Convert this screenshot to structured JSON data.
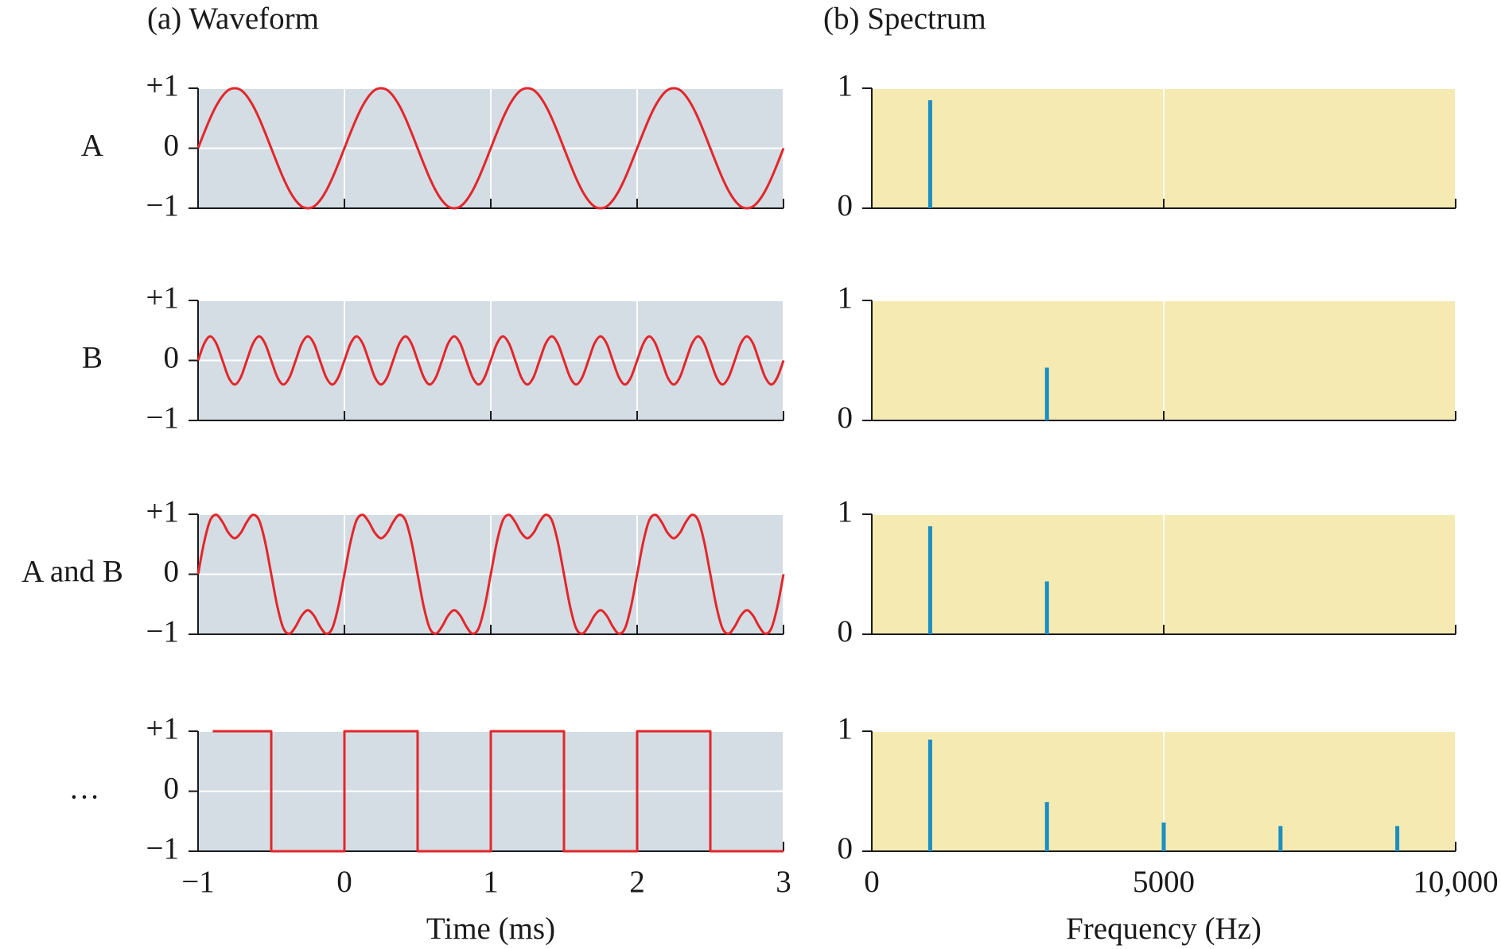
{
  "chart_data": [
    {
      "type": "line",
      "title": "(a) Waveform",
      "row_label": "A",
      "curve": "smooth",
      "background": "#d3dde3",
      "grid": true,
      "xtick_labels": false,
      "xlim": [
        -1,
        3
      ],
      "xticks": [
        -1,
        0,
        1,
        2,
        3
      ],
      "ylim": [
        -1,
        1
      ],
      "yticks": [
        {
          "value": -1,
          "label": "−1"
        },
        0,
        {
          "value": 1,
          "label": "+1"
        }
      ],
      "x": [
        -1,
        -0.958,
        -0.917,
        -0.875,
        -0.833,
        -0.792,
        -0.75,
        -0.708,
        -0.667,
        -0.625,
        -0.583,
        -0.542,
        -0.5,
        -0.458,
        -0.417,
        -0.375,
        -0.333,
        -0.292,
        -0.25,
        -0.208,
        -0.167,
        -0.125,
        -0.083,
        -0.042,
        0,
        0.042,
        0.083,
        0.125,
        0.167,
        0.208,
        0.25,
        0.292,
        0.333,
        0.375,
        0.417,
        0.458,
        0.5,
        0.542,
        0.583,
        0.625,
        0.667,
        0.708,
        0.75,
        0.792,
        0.833,
        0.875,
        0.917,
        0.958,
        1,
        1.042,
        1.083,
        1.125,
        1.167,
        1.208,
        1.25,
        1.292,
        1.333,
        1.375,
        1.417,
        1.458,
        1.5,
        1.542,
        1.583,
        1.625,
        1.667,
        1.708,
        1.75,
        1.792,
        1.833,
        1.875,
        1.917,
        1.958,
        2,
        2.042,
        2.083,
        2.125,
        2.167,
        2.208,
        2.25,
        2.292,
        2.333,
        2.375,
        2.417,
        2.458,
        2.5,
        2.542,
        2.583,
        2.625,
        2.667,
        2.708,
        2.75,
        2.792,
        2.833,
        2.875,
        2.917,
        2.958,
        3
      ],
      "series": [
        {
          "color": "#e3262b",
          "values": [
            0,
            0.26,
            0.5,
            0.71,
            0.87,
            0.97,
            1,
            0.97,
            0.87,
            0.71,
            0.5,
            0.26,
            0,
            -0.26,
            -0.5,
            -0.71,
            -0.87,
            -0.97,
            -1,
            -0.97,
            -0.87,
            -0.71,
            -0.5,
            -0.26,
            0,
            0.26,
            0.5,
            0.71,
            0.87,
            0.97,
            1,
            0.97,
            0.87,
            0.71,
            0.5,
            0.26,
            0,
            -0.26,
            -0.5,
            -0.71,
            -0.87,
            -0.97,
            -1,
            -0.97,
            -0.87,
            -0.71,
            -0.5,
            -0.26,
            0,
            0.26,
            0.5,
            0.71,
            0.87,
            0.97,
            1,
            0.97,
            0.87,
            0.71,
            0.5,
            0.26,
            0,
            -0.26,
            -0.5,
            -0.71,
            -0.87,
            -0.97,
            -1,
            -0.97,
            -0.87,
            -0.71,
            -0.5,
            -0.26,
            0,
            0.26,
            0.5,
            0.71,
            0.87,
            0.97,
            1,
            0.97,
            0.87,
            0.71,
            0.5,
            0.26,
            0,
            -0.26,
            -0.5,
            -0.71,
            -0.87,
            -0.97,
            -1,
            -0.97,
            -0.87,
            -0.71,
            -0.5,
            -0.26,
            0
          ]
        }
      ]
    },
    {
      "type": "line",
      "row_label": "B",
      "curve": "smooth",
      "background": "#d3dde3",
      "grid": true,
      "xtick_labels": false,
      "xlim": [
        -1,
        3
      ],
      "xticks": [
        -1,
        0,
        1,
        2,
        3
      ],
      "ylim": [
        -1,
        1
      ],
      "yticks": [
        {
          "value": -1,
          "label": "−1"
        },
        0,
        {
          "value": 1,
          "label": "+1"
        }
      ],
      "x": [
        -1,
        -0.958,
        -0.917,
        -0.875,
        -0.833,
        -0.792,
        -0.75,
        -0.708,
        -0.667,
        -0.625,
        -0.583,
        -0.542,
        -0.5,
        -0.458,
        -0.417,
        -0.375,
        -0.333,
        -0.292,
        -0.25,
        -0.208,
        -0.167,
        -0.125,
        -0.083,
        -0.042,
        0,
        0.042,
        0.083,
        0.125,
        0.167,
        0.208,
        0.25,
        0.292,
        0.333,
        0.375,
        0.417,
        0.458,
        0.5,
        0.542,
        0.583,
        0.625,
        0.667,
        0.708,
        0.75,
        0.792,
        0.833,
        0.875,
        0.917,
        0.958,
        1,
        1.042,
        1.083,
        1.125,
        1.167,
        1.208,
        1.25,
        1.292,
        1.333,
        1.375,
        1.417,
        1.458,
        1.5,
        1.542,
        1.583,
        1.625,
        1.667,
        1.708,
        1.75,
        1.792,
        1.833,
        1.875,
        1.917,
        1.958,
        2,
        2.042,
        2.083,
        2.125,
        2.167,
        2.208,
        2.25,
        2.292,
        2.333,
        2.375,
        2.417,
        2.458,
        2.5,
        2.542,
        2.583,
        2.625,
        2.667,
        2.708,
        2.75,
        2.792,
        2.833,
        2.875,
        2.917,
        2.958,
        3
      ],
      "series": [
        {
          "color": "#e3262b",
          "values": [
            0,
            0.28,
            0.4,
            0.28,
            0,
            -0.28,
            -0.4,
            -0.28,
            0,
            0.28,
            0.4,
            0.28,
            0,
            -0.28,
            -0.4,
            -0.28,
            0,
            0.28,
            0.4,
            0.28,
            0,
            -0.28,
            -0.4,
            -0.28,
            0,
            0.28,
            0.4,
            0.28,
            0,
            -0.28,
            -0.4,
            -0.28,
            0,
            0.28,
            0.4,
            0.28,
            0,
            -0.28,
            -0.4,
            -0.28,
            0,
            0.28,
            0.4,
            0.28,
            0,
            -0.28,
            -0.4,
            -0.28,
            0,
            0.28,
            0.4,
            0.28,
            0,
            -0.28,
            -0.4,
            -0.28,
            0,
            0.28,
            0.4,
            0.28,
            0,
            -0.28,
            -0.4,
            -0.28,
            0,
            0.28,
            0.4,
            0.28,
            0,
            -0.28,
            -0.4,
            -0.28,
            0,
            0.28,
            0.4,
            0.28,
            0,
            -0.28,
            -0.4,
            -0.28,
            0,
            0.28,
            0.4,
            0.28,
            0,
            -0.28,
            -0.4,
            -0.28,
            0,
            0.28,
            0.4,
            0.28,
            0,
            -0.28,
            -0.4,
            -0.28,
            0
          ]
        }
      ]
    },
    {
      "type": "line",
      "row_label": "A and B",
      "curve": "smooth",
      "background": "#d3dde3",
      "grid": true,
      "xtick_labels": false,
      "xlim": [
        -1,
        3
      ],
      "xticks": [
        -1,
        0,
        1,
        2,
        3
      ],
      "ylim": [
        -1,
        1
      ],
      "yticks": [
        {
          "value": -1,
          "label": "−1"
        },
        0,
        {
          "value": 1,
          "label": "+1"
        }
      ],
      "x": [
        -1,
        -0.958,
        -0.917,
        -0.875,
        -0.833,
        -0.792,
        -0.75,
        -0.708,
        -0.667,
        -0.625,
        -0.583,
        -0.542,
        -0.5,
        -0.458,
        -0.417,
        -0.375,
        -0.333,
        -0.292,
        -0.25,
        -0.208,
        -0.167,
        -0.125,
        -0.083,
        -0.042,
        0,
        0.042,
        0.083,
        0.125,
        0.167,
        0.208,
        0.25,
        0.292,
        0.333,
        0.375,
        0.417,
        0.458,
        0.5,
        0.542,
        0.583,
        0.625,
        0.667,
        0.708,
        0.75,
        0.792,
        0.833,
        0.875,
        0.917,
        0.958,
        1,
        1.042,
        1.083,
        1.125,
        1.167,
        1.208,
        1.25,
        1.292,
        1.333,
        1.375,
        1.417,
        1.458,
        1.5,
        1.542,
        1.583,
        1.625,
        1.667,
        1.708,
        1.75,
        1.792,
        1.833,
        1.875,
        1.917,
        1.958,
        2,
        2.042,
        2.083,
        2.125,
        2.167,
        2.208,
        2.25,
        2.292,
        2.333,
        2.375,
        2.417,
        2.458,
        2.5,
        2.542,
        2.583,
        2.625,
        2.667,
        2.708,
        2.75,
        2.792,
        2.833,
        2.875,
        2.917,
        2.958,
        3
      ],
      "series": [
        {
          "color": "#e3262b",
          "values": [
            0,
            0.54,
            0.9,
            0.99,
            0.87,
            0.69,
            0.6,
            0.69,
            0.87,
            0.99,
            0.9,
            0.54,
            0,
            -0.54,
            -0.9,
            -0.99,
            -0.87,
            -0.69,
            -0.6,
            -0.69,
            -0.87,
            -0.99,
            -0.9,
            -0.54,
            0,
            0.54,
            0.9,
            0.99,
            0.87,
            0.69,
            0.6,
            0.69,
            0.87,
            0.99,
            0.9,
            0.54,
            0,
            -0.54,
            -0.9,
            -0.99,
            -0.87,
            -0.69,
            -0.6,
            -0.69,
            -0.87,
            -0.99,
            -0.9,
            -0.54,
            0,
            0.54,
            0.9,
            0.99,
            0.87,
            0.69,
            0.6,
            0.69,
            0.87,
            0.99,
            0.9,
            0.54,
            0,
            -0.54,
            -0.9,
            -0.99,
            -0.87,
            -0.69,
            -0.6,
            -0.69,
            -0.87,
            -0.99,
            -0.9,
            -0.54,
            0,
            0.54,
            0.9,
            0.99,
            0.87,
            0.69,
            0.6,
            0.69,
            0.87,
            0.99,
            0.9,
            0.54,
            0,
            -0.54,
            -0.9,
            -0.99,
            -0.87,
            -0.69,
            -0.6,
            -0.69,
            -0.87,
            -0.99,
            -0.9,
            -0.54,
            0
          ]
        }
      ]
    },
    {
      "type": "line",
      "row_label": "…",
      "curve": "linear",
      "background": "#d3dde3",
      "grid": true,
      "xtick_labels": true,
      "xlabel": "Time (ms)",
      "xlim": [
        -1,
        3
      ],
      "xticks": [
        {
          "value": -1,
          "label": "−1"
        },
        0,
        1,
        2,
        3
      ],
      "ylim": [
        -1,
        1
      ],
      "yticks": [
        {
          "value": -1,
          "label": "−1"
        },
        0,
        {
          "value": 1,
          "label": "+1"
        }
      ],
      "x": [
        -0.9,
        -0.5,
        -0.5,
        0,
        0,
        0.5,
        0.5,
        1,
        1,
        1.5,
        1.5,
        2,
        2,
        2.5,
        2.5,
        3
      ],
      "series": [
        {
          "color": "#e3262b",
          "values": [
            1,
            1,
            -1,
            -1,
            1,
            1,
            -1,
            -1,
            1,
            1,
            -1,
            -1,
            1,
            1,
            -1,
            -1
          ]
        }
      ]
    },
    {
      "type": "stem",
      "title": "(b) Spectrum",
      "background": "#f4eab2",
      "grid": true,
      "xtick_labels": false,
      "xlim": [
        0,
        10000
      ],
      "xticks": [
        0,
        5000,
        10000
      ],
      "ylim": [
        0,
        1
      ],
      "yticks": [
        0,
        1
      ],
      "x": [
        1000
      ],
      "series": [
        {
          "color": "#1b8ec4",
          "values": [
            0.9
          ]
        }
      ]
    },
    {
      "type": "stem",
      "background": "#f4eab2",
      "grid": true,
      "xtick_labels": false,
      "xlim": [
        0,
        10000
      ],
      "xticks": [
        0,
        5000,
        10000
      ],
      "ylim": [
        0,
        1
      ],
      "yticks": [
        0,
        1
      ],
      "x": [
        3000
      ],
      "series": [
        {
          "color": "#1b8ec4",
          "values": [
            0.44
          ]
        }
      ]
    },
    {
      "type": "stem",
      "background": "#f4eab2",
      "grid": true,
      "xtick_labels": false,
      "xlim": [
        0,
        10000
      ],
      "xticks": [
        0,
        5000,
        10000
      ],
      "ylim": [
        0,
        1
      ],
      "yticks": [
        0,
        1
      ],
      "x": [
        1000,
        3000
      ],
      "series": [
        {
          "color": "#1b8ec4",
          "values": [
            0.9,
            0.44
          ]
        }
      ]
    },
    {
      "type": "stem",
      "background": "#f4eab2",
      "grid": true,
      "xtick_labels": true,
      "xlabel": "Frequency (Hz)",
      "xlim": [
        0,
        10000
      ],
      "xticks": [
        0,
        5000,
        {
          "value": 10000,
          "label": "10,000"
        }
      ],
      "ylim": [
        0,
        1
      ],
      "yticks": [
        0,
        1
      ],
      "x": [
        1000,
        3000,
        5000,
        7000,
        9000
      ],
      "series": [
        {
          "color": "#1b8ec4",
          "values": [
            0.93,
            0.41,
            0.24,
            0.21,
            0.21
          ]
        }
      ]
    }
  ]
}
